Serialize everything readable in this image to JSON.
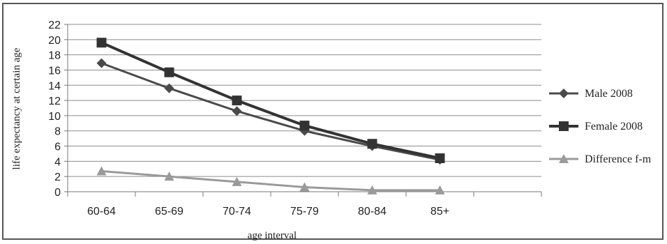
{
  "chart_data": {
    "type": "line",
    "title": "",
    "xlabel": "age interval",
    "ylabel": "life expectancy at certain age",
    "categories": [
      "60-64",
      "65-69",
      "70-74",
      "75-79",
      "80-84",
      "85+"
    ],
    "ylim": [
      0,
      22
    ],
    "yticks": [
      0,
      2,
      4,
      6,
      8,
      10,
      12,
      14,
      16,
      18,
      20,
      22
    ],
    "grid": true,
    "legend_position": "right",
    "series": [
      {
        "name": "Male 2008",
        "values": [
          16.9,
          13.6,
          10.6,
          8.0,
          6.0,
          4.2
        ],
        "marker": "diamond",
        "color": "#4a4a4a"
      },
      {
        "name": "Female 2008",
        "values": [
          19.6,
          15.7,
          12.0,
          8.7,
          6.3,
          4.4
        ],
        "marker": "square",
        "color": "#333333"
      },
      {
        "name": "Difference f-m",
        "values": [
          2.7,
          2.0,
          1.3,
          0.6,
          0.2,
          0.2
        ],
        "marker": "triangle",
        "color": "#9a9a9a"
      }
    ]
  }
}
